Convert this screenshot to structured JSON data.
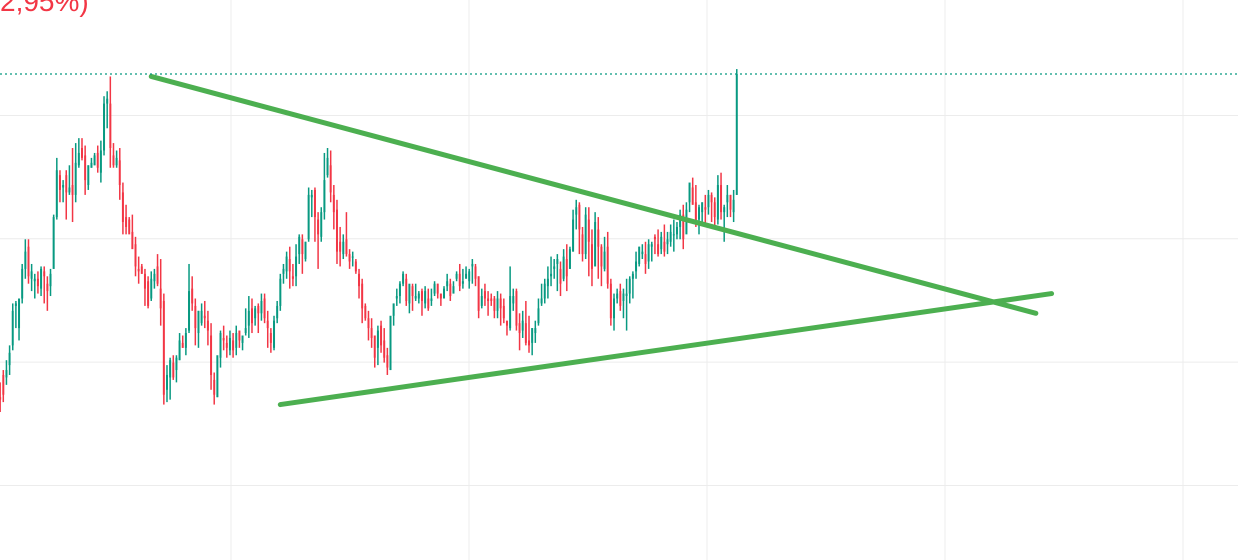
{
  "header": {
    "change_text": "2,95%)",
    "change_color": "#f23645"
  },
  "colors": {
    "up": "#089981",
    "down": "#f23645",
    "grid": "#ececec",
    "trendline": "#4caf50",
    "price_line": "#089981"
  },
  "chart_data": {
    "type": "candlestick",
    "grid": true,
    "current_price_line": true,
    "bars": [
      [
        -0.9,
        -1.6,
        1.1,
        -1.9
      ],
      [
        -1.4,
        -1.5,
        -0.8,
        -2.0
      ],
      [
        -0.5,
        -1.3,
        -0.3,
        -1.6
      ],
      [
        -0.6,
        -0.3,
        0.1,
        -0.9
      ],
      [
        -0.1,
        0.4,
        0.7,
        -0.5
      ],
      [
        0.7,
        2.1,
        2.4,
        0.5
      ],
      [
        2.3,
        2.4,
        2.5,
        1.4
      ],
      [
        1.4,
        2.6,
        2.6,
        0.9
      ],
      [
        2.6,
        3.8,
        4.0,
        2.4
      ],
      [
        3.8,
        4.5,
        5.0,
        3.4
      ],
      [
        4.7,
        3.5,
        5.0,
        3.2
      ],
      [
        3.4,
        3.7,
        4.0,
        2.9
      ],
      [
        3.3,
        3.4,
        3.6,
        2.6
      ],
      [
        3.4,
        3.1,
        3.7,
        2.8
      ],
      [
        3.0,
        3.8,
        3.9,
        2.7
      ],
      [
        3.7,
        3.5,
        3.9,
        2.4
      ],
      [
        3.2,
        2.9,
        3.5,
        2.1
      ],
      [
        3.1,
        3.6,
        3.8,
        2.7
      ],
      [
        3.8,
        5.9,
        6.0,
        3.8
      ],
      [
        5.9,
        7.8,
        8.3,
        5.8
      ],
      [
        7.6,
        7.0,
        7.8,
        6.5
      ],
      [
        7.1,
        7.2,
        7.4,
        6.5
      ],
      [
        7.6,
        6.9,
        7.8,
        5.8
      ],
      [
        6.9,
        7.1,
        8.0,
        6.8
      ],
      [
        7.2,
        6.8,
        8.7,
        5.7
      ],
      [
        6.8,
        8.1,
        8.9,
        6.5
      ],
      [
        8.0,
        8.5,
        9.1,
        7.9
      ],
      [
        8.7,
        8.3,
        9.1,
        8.2
      ],
      [
        8.4,
        7.4,
        8.8,
        6.8
      ],
      [
        7.2,
        8.0,
        8.0,
        7.0
      ],
      [
        7.9,
        8.1,
        8.3,
        7.9
      ],
      [
        8.0,
        8.4,
        8.5,
        8.0
      ],
      [
        8.5,
        7.9,
        8.8,
        7.7
      ],
      [
        7.7,
        8.6,
        9.0,
        7.3
      ],
      [
        8.6,
        10.5,
        10.8,
        8.4
      ],
      [
        10.5,
        10.7,
        11.0,
        9.5
      ],
      [
        10.5,
        8.7,
        11.6,
        7.9
      ],
      [
        8.4,
        8.0,
        8.9,
        7.9
      ],
      [
        8.0,
        8.3,
        8.6,
        7.9
      ],
      [
        8.2,
        7.2,
        8.7,
        6.6
      ],
      [
        6.9,
        5.7,
        7.3,
        5.2
      ],
      [
        5.9,
        5.5,
        6.4,
        5.2
      ],
      [
        5.8,
        5.2,
        5.9,
        5.3
      ],
      [
        5.3,
        4.6,
        6.0,
        5.0
      ],
      [
        4.8,
        3.9,
        5.1,
        3.5
      ],
      [
        3.8,
        3.7,
        4.3,
        3.2
      ],
      [
        3.9,
        3.6,
        4.0,
        3.6
      ],
      [
        3.6,
        3.0,
        3.8,
        2.3
      ],
      [
        3.3,
        2.3,
        3.5,
        2.2
      ],
      [
        2.6,
        3.4,
        3.7,
        2.5
      ],
      [
        3.3,
        3.6,
        3.8,
        3.0
      ],
      [
        3.9,
        3.2,
        4.4,
        3.1
      ],
      [
        3.0,
        2.2,
        4.2,
        1.5
      ],
      [
        2.5,
        -1.3,
        2.8,
        -1.7
      ],
      [
        -1.1,
        -0.5,
        -0.1,
        -1.6
      ],
      [
        -0.6,
        0.1,
        0.2,
        -1.5
      ],
      [
        0.0,
        -0.6,
        0.3,
        -0.7
      ],
      [
        -0.3,
        0.2,
        0.3,
        -0.8
      ],
      [
        0.1,
        0.9,
        1.2,
        0.1
      ],
      [
        0.8,
        0.6,
        1.1,
        0.6
      ],
      [
        0.6,
        1.2,
        1.4,
        0.3
      ],
      [
        1.3,
        2.9,
        4.0,
        1.2
      ],
      [
        3.0,
        2.4,
        3.5,
        2.1
      ],
      [
        2.3,
        1.4,
        2.6,
        0.7
      ],
      [
        1.2,
        2.1,
        2.1,
        0.6
      ],
      [
        1.6,
        2.1,
        2.4,
        1.5
      ],
      [
        1.9,
        1.8,
        2.5,
        1.4
      ],
      [
        1.7,
        1.3,
        2.1,
        0.7
      ],
      [
        1.1,
        -0.5,
        1.6,
        -1.1
      ],
      [
        -0.7,
        -1.3,
        -0.4,
        -1.7
      ],
      [
        -1.4,
        0.3,
        0.2,
        -1.4
      ],
      [
        0.2,
        1.2,
        1.3,
        -0.2
      ],
      [
        1.0,
        0.9,
        1.5,
        0.5
      ],
      [
        0.8,
        0.6,
        1.1,
        0.2
      ],
      [
        0.5,
        1.0,
        1.3,
        0.3
      ],
      [
        0.9,
        0.5,
        1.2,
        0.2
      ],
      [
        0.6,
        1.2,
        1.5,
        0.3
      ],
      [
        1.3,
        0.9,
        1.3,
        0.6
      ],
      [
        0.8,
        1.1,
        1.1,
        0.5
      ],
      [
        1.2,
        1.4,
        2.2,
        1.1
      ],
      [
        1.5,
        2.1,
        2.7,
        1.0
      ],
      [
        2.2,
        1.6,
        2.6,
        1.2
      ],
      [
        1.8,
        2.2,
        2.3,
        1.5
      ],
      [
        2.3,
        2.0,
        2.4,
        1.2
      ],
      [
        2.0,
        2.5,
        2.8,
        1.7
      ],
      [
        2.6,
        1.8,
        2.8,
        1.6
      ],
      [
        1.7,
        1.4,
        2.1,
        0.6
      ],
      [
        1.2,
        0.8,
        1.4,
        0.4
      ],
      [
        0.6,
        1.7,
        1.9,
        0.5
      ],
      [
        1.8,
        2.3,
        2.5,
        1.6
      ],
      [
        2.3,
        3.4,
        3.6,
        2.1
      ],
      [
        3.6,
        3.8,
        4.0,
        3.2
      ],
      [
        3.7,
        4.3,
        4.5,
        3.4
      ],
      [
        4.2,
        3.7,
        4.7,
        3.0
      ],
      [
        3.5,
        3.4,
        4.0,
        3.1
      ],
      [
        3.5,
        4.3,
        4.8,
        3.1
      ],
      [
        4.4,
        5.1,
        5.2,
        4.0
      ],
      [
        5.0,
        4.4,
        5.2,
        3.6
      ],
      [
        4.2,
        4.9,
        4.9,
        4.1
      ],
      [
        5.0,
        6.8,
        7.1,
        4.9
      ],
      [
        6.7,
        6.8,
        7.0,
        5.9
      ],
      [
        7.0,
        5.9,
        7.1,
        4.9
      ],
      [
        5.8,
        5.2,
        6.1,
        3.8
      ],
      [
        5.1,
        6.1,
        6.3,
        4.9
      ],
      [
        6.1,
        7.4,
        8.5,
        5.8
      ],
      [
        7.6,
        8.3,
        8.7,
        7.5
      ],
      [
        8.0,
        6.9,
        8.6,
        6.5
      ],
      [
        6.8,
        6.1,
        7.2,
        5.4
      ],
      [
        6.2,
        4.5,
        6.6,
        4.0
      ],
      [
        4.9,
        4.5,
        5.5,
        3.9
      ],
      [
        4.4,
        4.9,
        5.2,
        4.2
      ],
      [
        5.0,
        4.4,
        6.1,
        4.3
      ],
      [
        4.4,
        4.1,
        4.6,
        3.8
      ],
      [
        4.3,
        4.3,
        4.5,
        3.9
      ],
      [
        4.1,
        3.7,
        4.2,
        3.6
      ],
      [
        3.6,
        3.1,
        3.8,
        2.6
      ],
      [
        3.2,
        2.2,
        3.4,
        1.6
      ],
      [
        2.3,
        1.8,
        2.4,
        1.7
      ],
      [
        1.8,
        1.4,
        2.1,
        0.9
      ],
      [
        1.4,
        1.0,
        1.8,
        0.6
      ],
      [
        1.1,
        0.2,
        1.1,
        -0.2
      ],
      [
        0.6,
        1.3,
        1.5,
        -0.1
      ],
      [
        1.5,
        0.7,
        1.7,
        0.4
      ],
      [
        0.9,
        0.2,
        1.4,
        0.0
      ],
      [
        0.3,
        -0.2,
        0.6,
        -0.5
      ],
      [
        -0.3,
        1.9,
        1.8,
        -0.3
      ],
      [
        1.9,
        2.4,
        2.4,
        1.5
      ],
      [
        2.6,
        2.7,
        3.0,
        2.3
      ],
      [
        2.7,
        3.2,
        3.3,
        2.4
      ],
      [
        3.2,
        3.6,
        3.7,
        3.1
      ],
      [
        3.4,
        2.5,
        3.6,
        2.3
      ],
      [
        2.4,
        3.2,
        3.1,
        2.0
      ],
      [
        3.1,
        2.7,
        3.2,
        2.1
      ],
      [
        2.6,
        2.7,
        3.2,
        2.5
      ],
      [
        2.6,
        2.8,
        2.9,
        2.4
      ],
      [
        2.9,
        2.5,
        3.0,
        1.9
      ],
      [
        2.4,
        2.9,
        3.1,
        2.2
      ],
      [
        2.6,
        2.2,
        3.0,
        2.1
      ],
      [
        2.5,
        2.6,
        3.0,
        2.3
      ],
      [
        2.8,
        3.2,
        3.3,
        2.7
      ],
      [
        3.2,
        2.8,
        3.2,
        2.6
      ],
      [
        2.8,
        2.6,
        2.8,
        2.3
      ],
      [
        2.6,
        3.0,
        3.1,
        2.6
      ],
      [
        3.1,
        3.3,
        3.6,
        2.9
      ],
      [
        3.2,
        2.7,
        3.4,
        2.5
      ],
      [
        2.8,
        3.1,
        3.3,
        2.8
      ],
      [
        3.4,
        3.6,
        3.7,
        3.3
      ],
      [
        3.6,
        3.1,
        4.0,
        2.9
      ],
      [
        3.2,
        3.3,
        3.8,
        3.0
      ],
      [
        3.4,
        3.6,
        3.9,
        3.5
      ],
      [
        3.3,
        3.7,
        3.8,
        3.0
      ],
      [
        3.9,
        4.0,
        4.2,
        3.2
      ],
      [
        3.9,
        3.4,
        4.0,
        3.1
      ],
      [
        3.5,
        2.1,
        3.5,
        1.8
      ],
      [
        2.3,
        2.7,
        3.0,
        2.2
      ],
      [
        2.9,
        2.6,
        3.2,
        2.3
      ],
      [
        2.6,
        2.5,
        2.9,
        1.9
      ],
      [
        2.6,
        2.5,
        2.8,
        2.3
      ],
      [
        2.6,
        2.1,
        2.7,
        1.8
      ],
      [
        2.1,
        2.6,
        2.9,
        1.8
      ],
      [
        2.6,
        2.2,
        2.8,
        1.5
      ],
      [
        2.3,
        1.8,
        2.6,
        1.6
      ],
      [
        1.7,
        1.5,
        1.7,
        1.1
      ],
      [
        1.4,
        2.7,
        3.9,
        1.3
      ],
      [
        2.4,
        2.7,
        3.0,
        2.1
      ],
      [
        2.9,
        1.5,
        3.0,
        1.3
      ],
      [
        1.6,
        1.2,
        2.0,
        0.5
      ],
      [
        1.3,
        1.7,
        2.1,
        1.0
      ],
      [
        1.6,
        0.8,
        2.5,
        0.7
      ],
      [
        0.9,
        0.7,
        1.9,
        0.4
      ],
      [
        0.8,
        1.4,
        1.4,
        0.3
      ],
      [
        1.2,
        1.4,
        1.7,
        0.8
      ],
      [
        1.6,
        2.2,
        2.6,
        1.5
      ],
      [
        2.4,
        2.6,
        3.2,
        2.3
      ],
      [
        2.6,
        3.2,
        3.4,
        2.4
      ],
      [
        3.1,
        3.4,
        3.9,
        2.6
      ],
      [
        3.5,
        3.6,
        4.3,
        3.1
      ],
      [
        3.8,
        3.9,
        4.2,
        3.4
      ],
      [
        4.0,
        4.2,
        4.4,
        2.9
      ],
      [
        3.8,
        3.2,
        4.1,
        2.7
      ],
      [
        3.4,
        4.3,
        4.6,
        3.3
      ],
      [
        4.2,
        3.5,
        4.8,
        2.9
      ],
      [
        3.8,
        4.6,
        4.7,
        3.8
      ],
      [
        4.5,
        5.8,
        6.2,
        4.5
      ],
      [
        6.0,
        6.3,
        6.6,
        5.4
      ],
      [
        6.4,
        5.4,
        6.5,
        4.4
      ],
      [
        5.2,
        4.4,
        5.5,
        4.1
      ],
      [
        4.4,
        6.0,
        6.3,
        4.2
      ],
      [
        5.8,
        4.9,
        6.3,
        3.5
      ],
      [
        4.8,
        3.8,
        5.4,
        3.1
      ],
      [
        3.9,
        5.7,
        6.1,
        3.9
      ],
      [
        5.4,
        4.7,
        5.9,
        3.4
      ],
      [
        4.7,
        3.9,
        4.8,
        3.1
      ],
      [
        3.8,
        4.5,
        5.1,
        3.7
      ],
      [
        4.7,
        3.2,
        5.3,
        3.0
      ],
      [
        3.2,
        1.8,
        3.4,
        1.5
      ],
      [
        1.8,
        2.6,
        2.8,
        1.3
      ],
      [
        2.6,
        2.8,
        3.0,
        2.4
      ],
      [
        2.9,
        2.3,
        3.2,
        2.1
      ],
      [
        2.5,
        2.8,
        3.0,
        1.8
      ],
      [
        2.7,
        2.8,
        3.4,
        1.3
      ],
      [
        2.8,
        3.4,
        3.5,
        2.4
      ],
      [
        3.4,
        3.6,
        3.7,
        2.6
      ],
      [
        3.7,
        4.1,
        4.5,
        3.4
      ],
      [
        4.0,
        4.7,
        4.7,
        3.9
      ],
      [
        4.4,
        4.5,
        4.8,
        4.2
      ],
      [
        4.4,
        4.0,
        4.9,
        3.6
      ],
      [
        4.1,
        4.8,
        5.0,
        3.8
      ],
      [
        4.7,
        4.8,
        4.9,
        4.1
      ],
      [
        5.1,
        5.0,
        5.2,
        4.4
      ],
      [
        4.8,
        4.4,
        5.4,
        4.3
      ],
      [
        4.6,
        5.1,
        5.3,
        4.4
      ],
      [
        4.9,
        4.5,
        5.6,
        4.3
      ],
      [
        4.8,
        5.0,
        5.3,
        4.4
      ],
      [
        4.9,
        5.3,
        5.6,
        4.7
      ],
      [
        5.2,
        5.2,
        5.8,
        4.5
      ],
      [
        5.2,
        5.5,
        5.7,
        5.0
      ],
      [
        5.5,
        6.0,
        6.2,
        5.0
      ],
      [
        6.0,
        5.0,
        6.4,
        4.6
      ],
      [
        5.2,
        6.2,
        6.5,
        5.3
      ],
      [
        6.5,
        7.3,
        7.2,
        6.1
      ],
      [
        7.1,
        6.4,
        7.5,
        6.4
      ],
      [
        6.5,
        5.7,
        7.2,
        5.5
      ],
      [
        5.8,
        6.3,
        6.4,
        5.2
      ],
      [
        6.1,
        6.5,
        6.5,
        5.6
      ],
      [
        6.3,
        6.2,
        6.8,
        5.6
      ],
      [
        6.3,
        6.8,
        7.0,
        6.0
      ],
      [
        6.8,
        6.5,
        6.9,
        5.7
      ],
      [
        6.5,
        5.9,
        6.7,
        5.4
      ],
      [
        5.8,
        7.2,
        7.6,
        5.6
      ],
      [
        7.2,
        6.1,
        7.7,
        5.8
      ],
      [
        6.1,
        6.3,
        6.4,
        4.9
      ],
      [
        6.5,
        6.8,
        7.2,
        5.9
      ],
      [
        6.8,
        6.2,
        6.8,
        5.9
      ],
      [
        6.1,
        6.6,
        7.0,
        5.7
      ],
      [
        6.8,
        11.7,
        11.9,
        6.8
      ]
    ],
    "trendlines": [
      {
        "from_bar": 49,
        "from_value": 11.6,
        "to_bar": 330,
        "to_value": 2.0
      },
      {
        "from_bar": 90,
        "from_value": -1.7,
        "to_bar": 335,
        "to_value": 2.8
      }
    ],
    "current_price": 11.7,
    "y_range": [
      -8,
      14.7
    ]
  }
}
